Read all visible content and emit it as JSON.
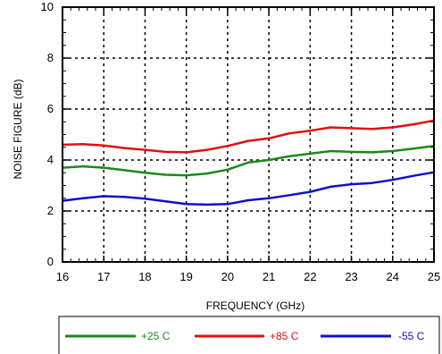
{
  "chart_data": {
    "type": "line",
    "title": "",
    "xlabel": "FREQUENCY (GHz)",
    "ylabel": "NOISE FIGURE (dB)",
    "xlim": [
      16,
      25
    ],
    "ylim": [
      0,
      10
    ],
    "xticks": [
      "16",
      "17",
      "18",
      "19",
      "20",
      "21",
      "22",
      "23",
      "24",
      "25"
    ],
    "yticks": [
      "0",
      "2",
      "4",
      "6",
      "8",
      "10"
    ],
    "grid": true,
    "legend_position": "bottom",
    "series": [
      {
        "name": "+25 C",
        "color": "#1a8a1a",
        "x": [
          16,
          16.5,
          17,
          17.5,
          18,
          18.5,
          19,
          19.5,
          20,
          20.5,
          21,
          21.5,
          22,
          22.5,
          23,
          23.5,
          24,
          24.5,
          25
        ],
        "y": [
          3.7,
          3.75,
          3.7,
          3.6,
          3.5,
          3.42,
          3.4,
          3.47,
          3.62,
          3.9,
          4.0,
          4.15,
          4.25,
          4.35,
          4.32,
          4.3,
          4.35,
          4.45,
          4.55
        ]
      },
      {
        "name": "+85 C",
        "color": "#e01010",
        "x": [
          16,
          16.5,
          17,
          17.5,
          18,
          18.5,
          19,
          19.5,
          20,
          20.5,
          21,
          21.5,
          22,
          22.5,
          23,
          23.5,
          24,
          24.5,
          25
        ],
        "y": [
          4.6,
          4.62,
          4.57,
          4.47,
          4.4,
          4.32,
          4.3,
          4.4,
          4.55,
          4.75,
          4.85,
          5.05,
          5.15,
          5.28,
          5.25,
          5.22,
          5.28,
          5.4,
          5.55
        ]
      },
      {
        "name": "-55 C",
        "color": "#1010c8",
        "x": [
          16,
          16.5,
          17,
          17.5,
          18,
          18.5,
          19,
          19.5,
          20,
          20.5,
          21,
          21.5,
          22,
          22.5,
          23,
          23.5,
          24,
          24.5,
          25
        ],
        "y": [
          2.4,
          2.5,
          2.58,
          2.55,
          2.48,
          2.38,
          2.27,
          2.25,
          2.27,
          2.42,
          2.5,
          2.62,
          2.75,
          2.95,
          3.05,
          3.1,
          3.22,
          3.38,
          3.52
        ]
      }
    ]
  }
}
